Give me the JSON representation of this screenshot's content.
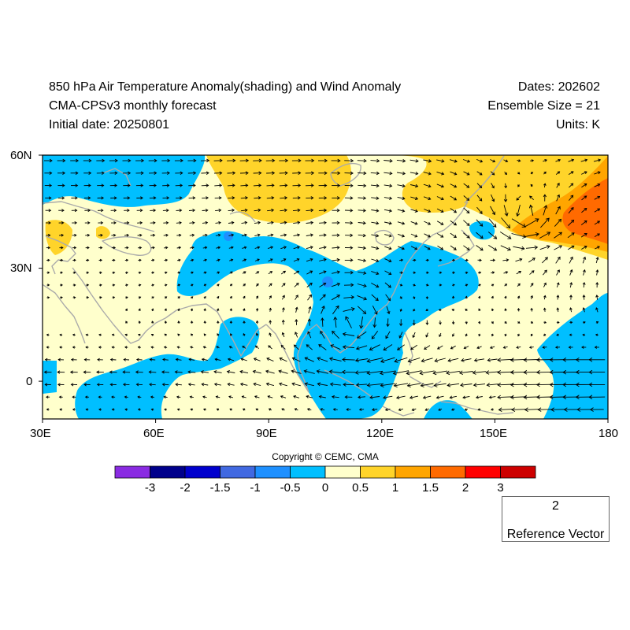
{
  "header": {
    "title_line1": "850 hPa Air Temperature Anomaly(shading) and Wind Anomaly",
    "title_line2": "CMA-CPSv3 monthly forecast",
    "title_line3": "Initial date: 20250801",
    "dates": "Dates: 202602",
    "ensemble": "Ensemble Size = 21",
    "units": "Units: K"
  },
  "axes": {
    "lon_labels": [
      "30E",
      "60E",
      "90E",
      "120E",
      "150E",
      "180"
    ],
    "lat_labels": [
      "60N",
      "30N",
      "0"
    ],
    "lon_range": [
      30,
      180
    ],
    "lat_range": [
      -10,
      60
    ]
  },
  "colors": {
    "land_outline": "#aaaaaa",
    "vector": "#000000"
  },
  "colorbar": {
    "copyright": "Copyright © CEMC, CMA",
    "boundaries": [
      "-3",
      "-2",
      "-1.5",
      "-1",
      "-0.5",
      "0",
      "0.5",
      "1",
      "1.5",
      "2",
      "3"
    ],
    "bin_colors": [
      "#8a2be2",
      "#00008b",
      "#0000cd",
      "#4169e1",
      "#1e90ff",
      "#00bfff",
      "#ffffcc",
      "#ffd42a",
      "#ffa500",
      "#ff6a00",
      "#ff0000",
      "#cd0000"
    ]
  },
  "reference_vector": {
    "magnitude": "2",
    "label": "Reference Vector"
  }
}
